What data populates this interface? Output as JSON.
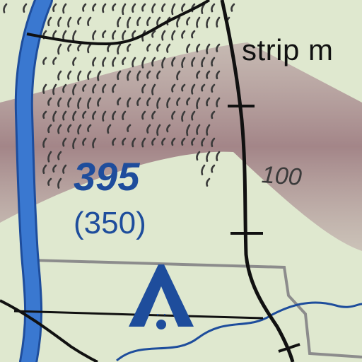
{
  "labels": {
    "strip_mine": "strip m",
    "obstruction_msl": "395",
    "obstruction_agl": "(350)",
    "contour_value": "100"
  },
  "colors": {
    "background": "#dfe8cf",
    "terrain_band": "#8f6470",
    "river": "#2f6fc8",
    "road": "#111111",
    "obstruction": "#1e4d9c",
    "hachure": "#3a3a3a",
    "boundary": "#8c8c8c"
  },
  "symbols": {
    "obstruction": "tower-obstruction-icon"
  }
}
